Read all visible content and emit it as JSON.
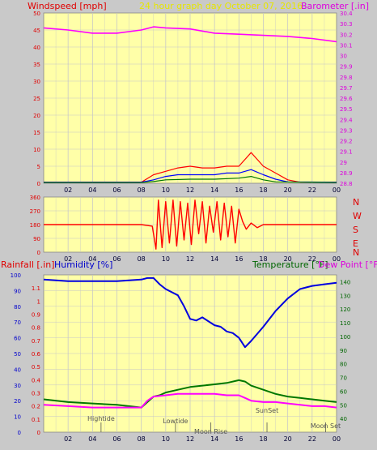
{
  "colors": {
    "page_bg": "#c9c9c9",
    "plot_bg": "#ffffa8",
    "grid": "#c7c7c7",
    "wind_speed": "#ff0000",
    "wind_gust": "#ff0000",
    "wind_avg": "#0000ff",
    "wind_low": "#007700",
    "barometer": "#ff00ff",
    "direction": "#ff0000",
    "humidity": "#0000e0",
    "temperature": "#007700",
    "dewpoint": "#ff00ff",
    "title_yellow": "#e6e600",
    "axis_red": "#e00000",
    "axis_magenta": "#dd00dd",
    "axis_blue": "#0000cc",
    "axis_green": "#006600",
    "tick_text": "#000033",
    "event_text": "#555555"
  },
  "header": {
    "left_label": "Windspeed [mph]",
    "title": "24 hour graph day   October 07, 2016",
    "right_label": "Barometer [.in]"
  },
  "bottom_header": {
    "rainfall_label": "Rainfall [.in]",
    "humidity_label": "Humidity [%]",
    "temperature_label": "Temperature [°F]",
    "dewpoint_label": "Dew Point [°F]"
  },
  "events": [
    {
      "label": "Hightide",
      "hour": 4.7
    },
    {
      "label": "Lowtide",
      "hour": 10.8
    },
    {
      "label": "Moon Rise",
      "hour": 13.7
    },
    {
      "label": "SunSet",
      "hour": 18.3
    },
    {
      "label": "Moon Set",
      "hour": 23.1
    }
  ],
  "chart_data": [
    {
      "type": "line",
      "id": "wind_barometer",
      "x_ticks": [
        "02",
        "04",
        "06",
        "08",
        "10",
        "12",
        "14",
        "16",
        "18",
        "20",
        "22",
        "00"
      ],
      "left_axis": {
        "label": "Windspeed [mph]",
        "ylim": [
          0,
          50
        ],
        "ticks": [
          "0",
          "5",
          "10",
          "15",
          "20",
          "25",
          "30",
          "35",
          "40",
          "45",
          "50"
        ]
      },
      "right_axis": {
        "label": "Barometer [.in]",
        "ylim": [
          28.8,
          30.4
        ],
        "ticks": [
          "28.8",
          "28.9",
          "29",
          "29.1",
          "29.2",
          "29.3",
          "29.4",
          "29.5",
          "29.6",
          "29.7",
          "29.8",
          "29.9",
          "30",
          "30.1",
          "30.2",
          "30.3",
          "30.4"
        ]
      },
      "series": [
        {
          "key": "barometer",
          "axis": "right",
          "points": [
            [
              0,
              30.26
            ],
            [
              2,
              30.24
            ],
            [
              4,
              30.21
            ],
            [
              6,
              30.21
            ],
            [
              8,
              30.24
            ],
            [
              9,
              30.27
            ],
            [
              10,
              30.26
            ],
            [
              12,
              30.25
            ],
            [
              14,
              30.21
            ],
            [
              16,
              30.2
            ],
            [
              18,
              30.19
            ],
            [
              20,
              30.18
            ],
            [
              22,
              30.16
            ],
            [
              24,
              30.13
            ]
          ]
        },
        {
          "key": "wind_gust",
          "axis": "left",
          "points": [
            [
              0,
              0.3
            ],
            [
              8,
              0.3
            ],
            [
              9,
              2.5
            ],
            [
              10,
              3.5
            ],
            [
              11,
              4.5
            ],
            [
              12,
              5
            ],
            [
              13,
              4.5
            ],
            [
              14,
              4.5
            ],
            [
              15,
              5
            ],
            [
              16,
              5
            ],
            [
              17,
              9
            ],
            [
              17.5,
              7
            ],
            [
              18,
              5
            ],
            [
              19,
              3
            ],
            [
              20,
              1
            ],
            [
              21,
              0.3
            ],
            [
              24,
              0.3
            ]
          ]
        },
        {
          "key": "wind_avg",
          "axis": "left",
          "points": [
            [
              0,
              0.3
            ],
            [
              8,
              0.3
            ],
            [
              9,
              1
            ],
            [
              10,
              2
            ],
            [
              11,
              2.5
            ],
            [
              12,
              2.5
            ],
            [
              13,
              2.5
            ],
            [
              14,
              2.5
            ],
            [
              15,
              3
            ],
            [
              16,
              3
            ],
            [
              17,
              4
            ],
            [
              18,
              2.5
            ],
            [
              19,
              1.2
            ],
            [
              20,
              0.4
            ],
            [
              24,
              0.3
            ]
          ]
        },
        {
          "key": "wind_low",
          "axis": "left",
          "points": [
            [
              0,
              0.2
            ],
            [
              8,
              0.2
            ],
            [
              9,
              0.5
            ],
            [
              10,
              1
            ],
            [
              12,
              1.2
            ],
            [
              14,
              1.2
            ],
            [
              16,
              1.5
            ],
            [
              17,
              2
            ],
            [
              18,
              1
            ],
            [
              19,
              0.4
            ],
            [
              24,
              0.2
            ]
          ]
        }
      ]
    },
    {
      "type": "line",
      "id": "wind_direction",
      "x_ticks": [
        "02",
        "04",
        "06",
        "08",
        "10",
        "12",
        "14",
        "16",
        "18",
        "20",
        "22",
        "00"
      ],
      "left_axis": {
        "ylim": [
          0,
          360
        ],
        "ticks": [
          "0",
          "90",
          "180",
          "270",
          "360"
        ]
      },
      "compass_labels": [
        "N",
        "W",
        "S",
        "E",
        "N"
      ],
      "series": [
        {
          "key": "direction",
          "points": [
            [
              0,
              180
            ],
            [
              8,
              180
            ],
            [
              8.9,
              170
            ],
            [
              9.2,
              20
            ],
            [
              9.4,
              340
            ],
            [
              9.7,
              30
            ],
            [
              10,
              330
            ],
            [
              10.3,
              60
            ],
            [
              10.6,
              340
            ],
            [
              10.9,
              40
            ],
            [
              11.2,
              330
            ],
            [
              11.5,
              80
            ],
            [
              11.8,
              320
            ],
            [
              12.1,
              50
            ],
            [
              12.4,
              340
            ],
            [
              12.7,
              120
            ],
            [
              13,
              330
            ],
            [
              13.3,
              60
            ],
            [
              13.6,
              300
            ],
            [
              13.9,
              130
            ],
            [
              14.2,
              330
            ],
            [
              14.5,
              80
            ],
            [
              14.8,
              320
            ],
            [
              15.1,
              100
            ],
            [
              15.4,
              300
            ],
            [
              15.7,
              60
            ],
            [
              16,
              280
            ],
            [
              16.3,
              200
            ],
            [
              16.6,
              150
            ],
            [
              17,
              190
            ],
            [
              17.5,
              160
            ],
            [
              18,
              180
            ],
            [
              24,
              180
            ]
          ]
        }
      ]
    },
    {
      "type": "line",
      "id": "rain_humidity_temperature",
      "x_ticks": [
        "02",
        "04",
        "06",
        "08",
        "10",
        "12",
        "14",
        "16",
        "18",
        "20",
        "22",
        "00"
      ],
      "rainfall_axis": {
        "label": "Rainfall [.in]",
        "ylim": [
          0,
          1.2
        ],
        "ticks": [
          "0",
          "0.1",
          "0.2",
          "0.3",
          "0.4",
          "0.5",
          "0.6",
          "0.7",
          "0.8",
          "0.9",
          "1",
          "1.1"
        ]
      },
      "humidity_axis": {
        "label": "Humidity [%]",
        "ylim": [
          0,
          100
        ],
        "ticks": [
          "0",
          "10",
          "20",
          "30",
          "40",
          "50",
          "60",
          "70",
          "80",
          "90",
          "100"
        ]
      },
      "temperature_axis": {
        "label": "Temperature [°F]",
        "ylim": [
          30,
          145
        ],
        "ticks": [
          "40",
          "50",
          "60",
          "70",
          "80",
          "90",
          "100",
          "110",
          "120",
          "130",
          "140"
        ]
      },
      "series": [
        {
          "key": "humidity",
          "axis": "humidity",
          "points": [
            [
              0,
              97
            ],
            [
              2,
              96
            ],
            [
              4,
              96
            ],
            [
              6,
              96
            ],
            [
              8,
              97
            ],
            [
              8.5,
              98
            ],
            [
              9,
              98
            ],
            [
              9.5,
              94
            ],
            [
              10,
              91
            ],
            [
              11,
              87
            ],
            [
              11.5,
              80
            ],
            [
              12,
              72
            ],
            [
              12.5,
              71
            ],
            [
              13,
              73
            ],
            [
              14,
              68
            ],
            [
              14.5,
              67
            ],
            [
              15,
              64
            ],
            [
              15.5,
              63
            ],
            [
              16,
              60
            ],
            [
              16.5,
              54
            ],
            [
              17,
              58
            ],
            [
              18,
              67
            ],
            [
              19,
              77
            ],
            [
              20,
              85
            ],
            [
              21,
              91
            ],
            [
              22,
              93
            ],
            [
              23,
              94
            ],
            [
              24,
              95
            ]
          ]
        },
        {
          "key": "temperature",
          "axis": "temperature",
          "points": [
            [
              0,
              54
            ],
            [
              2,
              52
            ],
            [
              4,
              51
            ],
            [
              6,
              50
            ],
            [
              8,
              48
            ],
            [
              8.5,
              52
            ],
            [
              9,
              56
            ],
            [
              9.5,
              57
            ],
            [
              10,
              59
            ],
            [
              11,
              61
            ],
            [
              12,
              63
            ],
            [
              13,
              64
            ],
            [
              14,
              65
            ],
            [
              15,
              66
            ],
            [
              16,
              68
            ],
            [
              16.5,
              67
            ],
            [
              17,
              64
            ],
            [
              18,
              61
            ],
            [
              19,
              58
            ],
            [
              20,
              56
            ],
            [
              21,
              55
            ],
            [
              22,
              54
            ],
            [
              23,
              53
            ],
            [
              24,
              52
            ]
          ]
        },
        {
          "key": "dewpoint",
          "axis": "temperature",
          "points": [
            [
              0,
              50
            ],
            [
              2,
              49
            ],
            [
              4,
              48
            ],
            [
              6,
              48
            ],
            [
              8,
              48
            ],
            [
              8.5,
              53
            ],
            [
              9,
              56
            ],
            [
              10,
              57
            ],
            [
              11,
              58
            ],
            [
              12,
              58
            ],
            [
              13,
              58
            ],
            [
              14,
              58
            ],
            [
              15,
              57
            ],
            [
              16,
              57
            ],
            [
              16.5,
              55
            ],
            [
              17,
              53
            ],
            [
              18,
              52
            ],
            [
              19,
              52
            ],
            [
              20,
              51
            ],
            [
              21,
              50
            ],
            [
              22,
              49
            ],
            [
              23,
              49
            ],
            [
              24,
              48
            ]
          ]
        }
      ]
    }
  ]
}
